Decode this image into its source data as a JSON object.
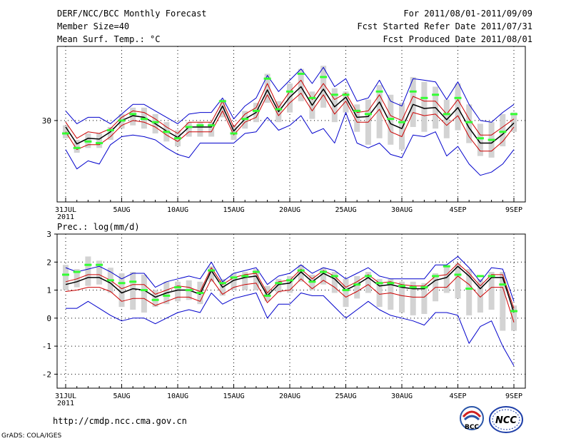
{
  "header": {
    "title": "DERF/NCC/BCC Monthly Forecast",
    "member_size": "Member Size=40",
    "variable": "Mean Surf. Temp.: °C",
    "period": "For 2011/08/01-2011/09/09",
    "started": "Fcst Started Refer Date 2011/07/31",
    "produced": "Fcst Produced Date 2011/08/01"
  },
  "footer": {
    "url": "http://cmdp.ncc.cma.gov.cn",
    "credit": "GrADS: COLA/IGES",
    "logo_bcc": "BCC",
    "logo_ncc": "NCC"
  },
  "colors": {
    "spread": "#0000cc",
    "mean": "#000000",
    "band": "#cc0000",
    "obs": "#33ff33",
    "bar": "#d3d3d3",
    "grid": "#000000"
  },
  "chart_data": [
    {
      "type": "line",
      "title": "Mean Surf. Temp.: °C",
      "x": [
        "31JUL",
        "1AUG",
        "2AUG",
        "3AUG",
        "4AUG",
        "5AUG",
        "6AUG",
        "7AUG",
        "8AUG",
        "9AUG",
        "10AUG",
        "11AUG",
        "12AUG",
        "13AUG",
        "14AUG",
        "15AUG",
        "16AUG",
        "17AUG",
        "18AUG",
        "19AUG",
        "20AUG",
        "21AUG",
        "22AUG",
        "23AUG",
        "24AUG",
        "25AUG",
        "26AUG",
        "27AUG",
        "28AUG",
        "29AUG",
        "30AUG",
        "31AUG",
        "1SEP",
        "2SEP",
        "3SEP",
        "4SEP",
        "5SEP",
        "6SEP",
        "7SEP",
        "8SEP",
        "9SEP"
      ],
      "xtick_labels": [
        {
          "index": 0,
          "label": "31JUL",
          "sub": "2011"
        },
        {
          "index": 5,
          "label": "5AUG"
        },
        {
          "index": 10,
          "label": "10AUG"
        },
        {
          "index": 15,
          "label": "15AUG"
        },
        {
          "index": 20,
          "label": "20AUG"
        },
        {
          "index": 25,
          "label": "25AUG"
        },
        {
          "index": 30,
          "label": "30AUG"
        },
        {
          "index": 35,
          "label": "4SEP"
        },
        {
          "index": 40,
          "label": "9SEP"
        }
      ],
      "ytick_labels": [
        {
          "value": 30,
          "label": "30"
        }
      ],
      "ylim": [
        24.95,
        34.6
      ],
      "grid": true,
      "series": [
        {
          "name": "ensemble max",
          "color": "#0000cc",
          "values": [
            30.6,
            29.8,
            30.2,
            30.2,
            29.8,
            30.4,
            31.0,
            31.0,
            30.6,
            30.2,
            29.8,
            30.4,
            30.5,
            30.5,
            31.4,
            30.1,
            30.9,
            31.4,
            32.8,
            31.8,
            32.5,
            33.2,
            32.3,
            33.3,
            32.1,
            32.6,
            31.2,
            31.4,
            32.5,
            31.2,
            30.9,
            32.6,
            32.5,
            32.4,
            31.3,
            32.4,
            31.0,
            30.0,
            29.9,
            30.5,
            31.0
          ]
        },
        {
          "name": "ensemble min",
          "color": "#0000cc",
          "values": [
            28.2,
            27.0,
            27.5,
            27.3,
            28.5,
            29.0,
            29.1,
            29.0,
            28.8,
            28.3,
            27.9,
            27.7,
            28.6,
            28.6,
            28.6,
            28.6,
            29.2,
            29.3,
            30.2,
            29.4,
            29.7,
            30.3,
            29.2,
            29.5,
            28.6,
            30.5,
            28.6,
            28.3,
            28.6,
            27.9,
            27.7,
            29.1,
            29.0,
            29.3,
            27.8,
            28.4,
            27.3,
            26.6,
            26.8,
            27.3,
            28.2
          ]
        },
        {
          "name": "mean + sd",
          "color": "#cc0000",
          "values": [
            29.9,
            28.9,
            29.3,
            29.2,
            29.5,
            30.2,
            30.6,
            30.5,
            30.1,
            29.6,
            29.2,
            29.9,
            29.9,
            29.9,
            31.2,
            29.6,
            30.4,
            30.8,
            32.3,
            30.8,
            31.8,
            32.5,
            31.3,
            32.3,
            31.3,
            31.7,
            30.5,
            30.6,
            31.6,
            30.3,
            30.0,
            31.5,
            31.2,
            31.2,
            30.4,
            31.3,
            30.1,
            29.1,
            29.1,
            29.6,
            30.1
          ]
        },
        {
          "name": "mean - sd",
          "color": "#cc0000",
          "values": [
            29.3,
            28.2,
            28.5,
            28.5,
            29.0,
            29.7,
            30.0,
            29.9,
            29.6,
            29.1,
            28.7,
            29.3,
            29.3,
            29.3,
            30.6,
            29.1,
            29.9,
            30.2,
            31.6,
            30.3,
            31.1,
            31.7,
            30.6,
            31.6,
            30.4,
            31.2,
            29.9,
            29.9,
            30.7,
            29.3,
            29.0,
            30.5,
            30.3,
            30.4,
            29.7,
            30.3,
            29.0,
            28.1,
            28.1,
            28.7,
            29.6
          ]
        },
        {
          "name": "ensemble mean",
          "color": "#000000",
          "values": [
            29.6,
            28.55,
            28.9,
            28.85,
            29.3,
            30.0,
            30.3,
            30.2,
            29.8,
            29.35,
            28.95,
            29.6,
            29.6,
            29.6,
            30.9,
            29.35,
            30.1,
            30.5,
            31.9,
            30.55,
            31.45,
            32.1,
            30.95,
            31.95,
            30.85,
            31.45,
            30.2,
            30.25,
            31.15,
            29.8,
            29.5,
            31.0,
            30.75,
            30.8,
            30.05,
            30.8,
            29.55,
            28.6,
            28.6,
            29.15,
            29.85
          ]
        },
        {
          "name": "observation",
          "color": "#33ff33",
          "values": [
            29.2,
            28.3,
            28.7,
            28.6,
            29.4,
            30.0,
            30.4,
            30.1,
            29.9,
            29.3,
            28.9,
            29.6,
            29.7,
            29.7,
            31.2,
            29.2,
            30.1,
            30.6,
            32.6,
            30.7,
            31.8,
            32.9,
            31.4,
            32.7,
            31.6,
            31.6,
            30.6,
            30.4,
            31.8,
            30.1,
            29.9,
            31.8,
            31.4,
            31.6,
            30.4,
            31.4,
            29.9,
            28.9,
            28.8,
            29.3,
            30.4
          ]
        },
        {
          "name": "bar top",
          "color": "#d3d3d3",
          "values": [
            29.7,
            28.8,
            29.2,
            29.2,
            29.6,
            30.4,
            30.8,
            30.8,
            30.4,
            29.9,
            29.4,
            29.9,
            29.9,
            29.9,
            31.3,
            29.7,
            30.6,
            31.1,
            32.9,
            31.2,
            32.3,
            33.2,
            31.8,
            33.4,
            32.0,
            31.8,
            31.0,
            31.3,
            32.2,
            31.6,
            31.1,
            32.7,
            32.4,
            32.1,
            31.3,
            32.3,
            31.0,
            29.8,
            29.9,
            30.4,
            30.5
          ]
        },
        {
          "name": "bar bottom",
          "color": "#d3d3d3",
          "values": [
            28.9,
            28.0,
            28.3,
            28.3,
            28.8,
            29.5,
            29.7,
            29.5,
            29.2,
            28.7,
            28.4,
            29.0,
            29.0,
            29.0,
            30.2,
            28.8,
            29.5,
            29.9,
            31.1,
            29.9,
            30.5,
            31.2,
            30.1,
            30.8,
            29.9,
            30.5,
            29.3,
            28.5,
            28.9,
            28.5,
            28.2,
            29.6,
            29.3,
            29.5,
            28.9,
            29.4,
            28.6,
            27.8,
            27.7,
            28.4,
            29.3
          ]
        }
      ]
    },
    {
      "type": "line",
      "title": "Prec.: log(mm/d)",
      "x": [
        "31JUL",
        "1AUG",
        "2AUG",
        "3AUG",
        "4AUG",
        "5AUG",
        "6AUG",
        "7AUG",
        "8AUG",
        "9AUG",
        "10AUG",
        "11AUG",
        "12AUG",
        "13AUG",
        "14AUG",
        "15AUG",
        "16AUG",
        "17AUG",
        "18AUG",
        "19AUG",
        "20AUG",
        "21AUG",
        "22AUG",
        "23AUG",
        "24AUG",
        "25AUG",
        "26AUG",
        "27AUG",
        "28AUG",
        "29AUG",
        "30AUG",
        "31AUG",
        "1SEP",
        "2SEP",
        "3SEP",
        "4SEP",
        "5SEP",
        "6SEP",
        "7SEP",
        "8SEP",
        "9SEP"
      ],
      "xtick_labels": [
        {
          "index": 0,
          "label": "31JUL",
          "sub": "2011"
        },
        {
          "index": 5,
          "label": "5AUG"
        },
        {
          "index": 10,
          "label": "10AUG"
        },
        {
          "index": 15,
          "label": "15AUG"
        },
        {
          "index": 20,
          "label": "20AUG"
        },
        {
          "index": 25,
          "label": "25AUG"
        },
        {
          "index": 30,
          "label": "30AUG"
        },
        {
          "index": 35,
          "label": "4SEP"
        },
        {
          "index": 40,
          "label": "9SEP"
        }
      ],
      "ytick_labels": [
        {
          "value": 3,
          "label": "3"
        },
        {
          "value": 2,
          "label": "2"
        },
        {
          "value": 1,
          "label": "1"
        },
        {
          "value": 0,
          "label": "0"
        },
        {
          "value": -1,
          "label": "-1"
        },
        {
          "value": -2,
          "label": "-2"
        }
      ],
      "ylim": [
        -2.5,
        3.0
      ],
      "grid": true,
      "series": [
        {
          "name": "ensemble max",
          "color": "#0000cc",
          "values": [
            1.8,
            1.65,
            1.75,
            1.85,
            1.65,
            1.4,
            1.6,
            1.6,
            1.1,
            1.3,
            1.4,
            1.5,
            1.4,
            2.0,
            1.3,
            1.6,
            1.7,
            1.8,
            1.2,
            1.5,
            1.6,
            1.9,
            1.6,
            1.8,
            1.7,
            1.4,
            1.6,
            1.8,
            1.5,
            1.4,
            1.4,
            1.4,
            1.4,
            1.9,
            1.9,
            2.2,
            1.8,
            1.3,
            1.8,
            1.75,
            0.6
          ]
        },
        {
          "name": "ensemble min",
          "color": "#0000cc",
          "values": [
            0.35,
            0.35,
            0.6,
            0.35,
            0.1,
            -0.1,
            0.0,
            0.0,
            -0.2,
            0.0,
            0.2,
            0.3,
            0.2,
            0.9,
            0.5,
            0.7,
            0.8,
            0.9,
            0.0,
            0.5,
            0.5,
            0.9,
            0.8,
            0.8,
            0.4,
            0.0,
            0.3,
            0.6,
            0.3,
            0.1,
            0.0,
            -0.1,
            -0.25,
            0.2,
            0.2,
            0.1,
            -0.9,
            -0.3,
            -0.1,
            -1.0,
            -1.7
          ]
        },
        {
          "name": "mean + sd",
          "color": "#cc0000",
          "values": [
            1.3,
            1.4,
            1.55,
            1.55,
            1.35,
            1.05,
            1.2,
            1.2,
            0.85,
            1.0,
            1.15,
            1.1,
            0.95,
            1.8,
            1.2,
            1.45,
            1.55,
            1.6,
            0.9,
            1.3,
            1.35,
            1.75,
            1.4,
            1.7,
            1.5,
            1.1,
            1.3,
            1.55,
            1.25,
            1.3,
            1.2,
            1.15,
            1.15,
            1.5,
            1.55,
            1.95,
            1.6,
            1.15,
            1.55,
            1.55,
            0.35
          ]
        },
        {
          "name": "mean - sd",
          "color": "#cc0000",
          "values": [
            0.95,
            1.0,
            1.1,
            1.1,
            0.95,
            0.6,
            0.7,
            0.7,
            0.45,
            0.6,
            0.75,
            0.75,
            0.6,
            1.4,
            0.85,
            1.1,
            1.2,
            1.25,
            0.55,
            0.95,
            1.0,
            1.4,
            1.05,
            1.35,
            1.1,
            0.75,
            0.95,
            1.2,
            0.85,
            0.9,
            0.8,
            0.75,
            0.75,
            1.1,
            1.1,
            1.5,
            1.2,
            0.75,
            1.1,
            1.1,
            -0.15
          ]
        },
        {
          "name": "ensemble mean",
          "color": "#000000",
          "values": [
            1.2,
            1.3,
            1.45,
            1.45,
            1.25,
            0.9,
            1.05,
            1.0,
            0.75,
            0.9,
            1.0,
            1.0,
            0.85,
            1.7,
            1.1,
            1.35,
            1.45,
            1.5,
            0.8,
            1.2,
            1.25,
            1.65,
            1.3,
            1.6,
            1.4,
            1.0,
            1.2,
            1.45,
            1.15,
            1.2,
            1.1,
            1.05,
            1.05,
            1.35,
            1.45,
            1.85,
            1.5,
            1.05,
            1.45,
            1.45,
            0.2
          ]
        },
        {
          "name": "observation",
          "color": "#33ff33",
          "values": [
            1.55,
            1.65,
            1.9,
            1.9,
            1.35,
            1.25,
            1.3,
            1.0,
            0.65,
            0.8,
            1.1,
            1.0,
            0.9,
            1.7,
            1.25,
            1.45,
            1.5,
            1.65,
            0.8,
            1.25,
            1.35,
            1.7,
            1.3,
            1.65,
            1.5,
            1.0,
            1.2,
            1.5,
            1.25,
            1.25,
            1.15,
            1.1,
            1.1,
            1.5,
            1.85,
            1.55,
            1.05,
            1.5,
            1.5,
            1.2,
            0.25
          ]
        },
        {
          "name": "bar top",
          "color": "#d3d3d3",
          "values": [
            1.9,
            1.75,
            2.2,
            2.05,
            1.8,
            1.6,
            1.65,
            1.55,
            1.0,
            1.3,
            1.3,
            1.35,
            1.3,
            1.85,
            1.4,
            1.6,
            1.65,
            1.75,
            1.15,
            1.4,
            1.5,
            1.9,
            1.55,
            1.8,
            1.65,
            1.4,
            1.5,
            1.65,
            1.4,
            1.4,
            1.3,
            1.3,
            1.25,
            1.6,
            1.85,
            1.95,
            1.75,
            1.4,
            1.65,
            1.65,
            0.45
          ]
        },
        {
          "name": "bar bottom",
          "color": "#d3d3d3",
          "values": [
            1.0,
            1.1,
            1.15,
            1.2,
            0.9,
            0.4,
            0.3,
            0.2,
            0.4,
            0.5,
            0.6,
            0.65,
            0.5,
            1.3,
            0.8,
            1.0,
            1.0,
            1.0,
            0.6,
            0.9,
            0.9,
            1.3,
            1.0,
            1.2,
            0.9,
            0.4,
            0.7,
            0.9,
            0.4,
            0.3,
            0.2,
            0.1,
            0.15,
            0.6,
            0.9,
            0.7,
            0.1,
            0.2,
            0.3,
            -0.45,
            -0.45
          ]
        }
      ]
    }
  ]
}
